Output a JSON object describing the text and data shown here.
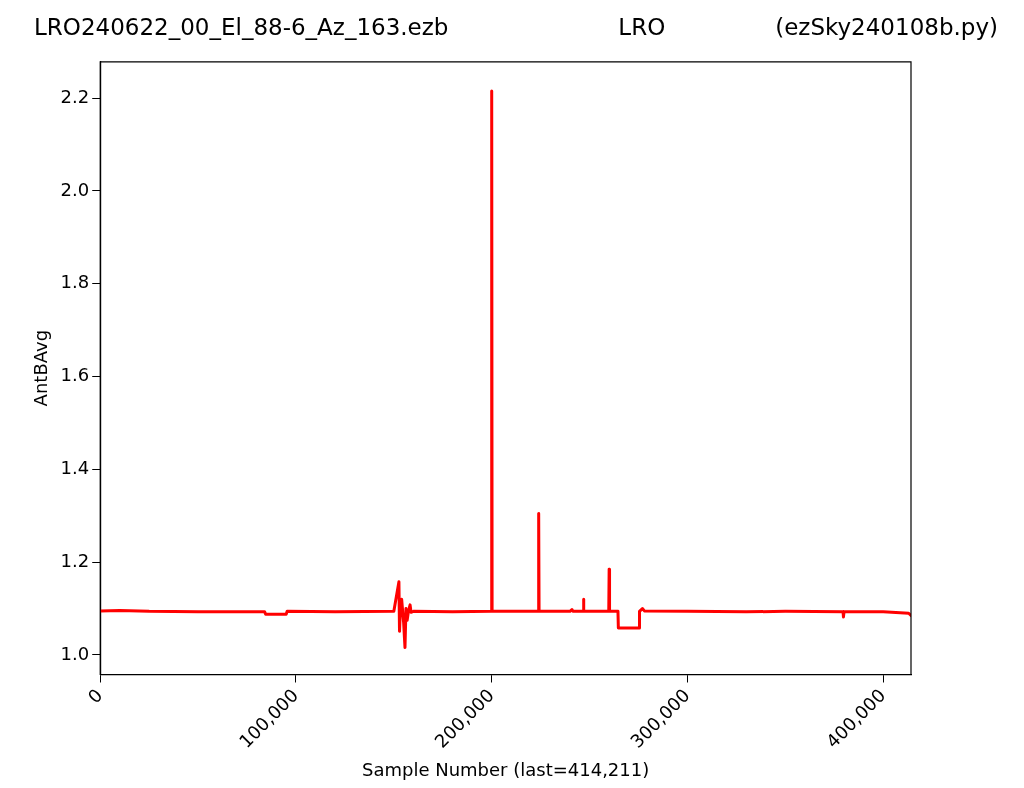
{
  "chart_data": {
    "type": "line",
    "title": "LRO",
    "annotations": [
      "LRO240622_00_El_88-6_Az_163.ezb",
      "(ezSky240108b.py)"
    ],
    "xlabel": "Sample Number (last=414,211)",
    "ylabel": "AntBAvg",
    "series": [
      {
        "color": "#ff0000",
        "x": [
          0,
          10000,
          25000,
          50000,
          84000,
          84500,
          95000,
          95500,
          120000,
          150000,
          152600,
          152900,
          153300,
          154000,
          155000,
          155700,
          156200,
          156800,
          157500,
          158300,
          158800,
          160000,
          180000,
          199800,
          200000,
          200200,
          223800,
          224000,
          224200,
          240000,
          241000,
          241500,
          246700,
          246900,
          247100,
          259800,
          260000,
          260200,
          264500,
          264700,
          275300,
          275500,
          277000,
          278000,
          300000,
          330000,
          350000,
          379500,
          379700,
          380000,
          400000,
          413000,
          414211
        ],
        "values": [
          1.095,
          1.096,
          1.094,
          1.093,
          1.093,
          1.088,
          1.088,
          1.094,
          1.093,
          1.094,
          1.158,
          1.051,
          1.095,
          1.12,
          1.07,
          1.016,
          1.1,
          1.075,
          1.095,
          1.108,
          1.092,
          1.094,
          1.093,
          1.094,
          2.215,
          1.094,
          1.094,
          1.305,
          1.094,
          1.094,
          1.098,
          1.094,
          1.094,
          1.12,
          1.094,
          1.094,
          1.185,
          1.094,
          1.094,
          1.058,
          1.058,
          1.094,
          1.1,
          1.095,
          1.094,
          1.093,
          1.094,
          1.093,
          1.082,
          1.093,
          1.093,
          1.09,
          1.085
        ]
      }
    ],
    "xlim": [
      0,
      414211
    ],
    "ylim": [
      0.958,
      2.278
    ],
    "xticks": [
      {
        "value": 0,
        "label": "0"
      },
      {
        "value": 100000,
        "label": "100,000"
      },
      {
        "value": 200000,
        "label": "200,000"
      },
      {
        "value": 300000,
        "label": "300,000"
      },
      {
        "value": 400000,
        "label": "400,000"
      }
    ],
    "yticks": [
      {
        "value": 1,
        "label": "1.0"
      },
      {
        "value": 1.2,
        "label": "1.2"
      },
      {
        "value": 1.4,
        "label": "1.4"
      },
      {
        "value": 1.6,
        "label": "1.6"
      },
      {
        "value": 1.8,
        "label": "1.8"
      },
      {
        "value": 2,
        "label": "2.0"
      },
      {
        "value": 2.2,
        "label": "2.2"
      }
    ],
    "grid": false,
    "legend": false
  }
}
